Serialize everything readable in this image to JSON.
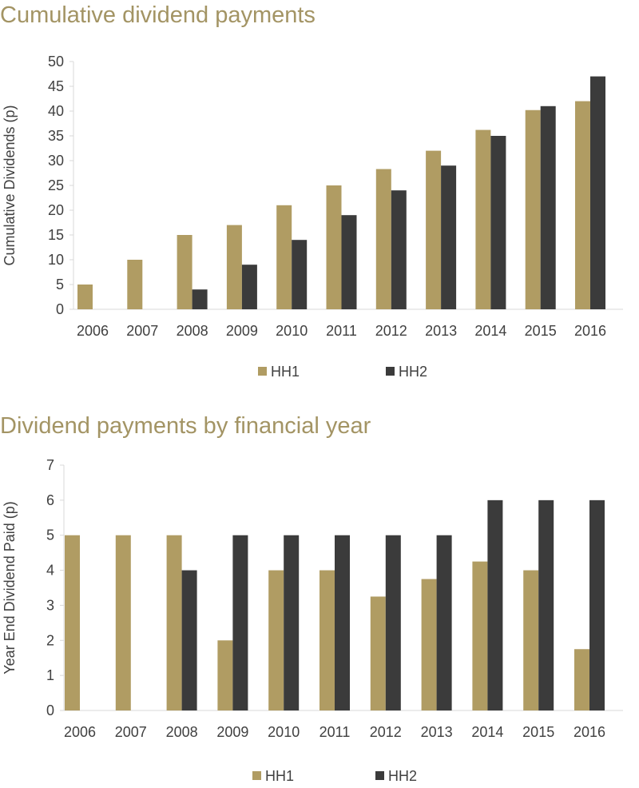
{
  "colors": {
    "title": "#a39464",
    "hh1": "#b09c63",
    "hh2": "#3b3b3b",
    "axis": "#d9d9d9",
    "text": "#404040"
  },
  "chart_data": [
    {
      "type": "bar",
      "title": "Cumulative dividend payments",
      "xlabel": "",
      "ylabel": "Cumulative Dividends (p)",
      "ylim": [
        0,
        50
      ],
      "yticks": [
        0,
        5,
        10,
        15,
        20,
        25,
        30,
        35,
        40,
        45,
        50
      ],
      "grid": false,
      "legend_position": "bottom",
      "categories": [
        "2006",
        "2007",
        "2008",
        "2009",
        "2010",
        "2011",
        "2012",
        "2013",
        "2014",
        "2015",
        "2016"
      ],
      "series": [
        {
          "name": "HH1",
          "color": "#b09c63",
          "values": [
            5,
            10,
            15,
            17,
            21,
            25,
            28.3,
            32,
            36.2,
            40.2,
            42
          ]
        },
        {
          "name": "HH2",
          "color": "#3b3b3b",
          "values": [
            0,
            0,
            4,
            9,
            14,
            19,
            24,
            29,
            35,
            41,
            47
          ]
        }
      ]
    },
    {
      "type": "bar",
      "title": "Dividend payments by financial year",
      "xlabel": "",
      "ylabel": "Year End Dividend Paid (p)",
      "ylim": [
        0,
        7
      ],
      "yticks": [
        0,
        1,
        2,
        3,
        4,
        5,
        6,
        7
      ],
      "grid": false,
      "legend_position": "bottom",
      "categories": [
        "2006",
        "2007",
        "2008",
        "2009",
        "2010",
        "2011",
        "2012",
        "2013",
        "2014",
        "2015",
        "2016"
      ],
      "series": [
        {
          "name": "HH1",
          "color": "#b09c63",
          "values": [
            5,
            5,
            5,
            2,
            4,
            4,
            3.25,
            3.75,
            4.25,
            4,
            1.75
          ]
        },
        {
          "name": "HH2",
          "color": "#3b3b3b",
          "values": [
            0,
            0,
            4,
            5,
            5,
            5,
            5,
            5,
            6,
            6,
            6
          ]
        }
      ]
    }
  ]
}
